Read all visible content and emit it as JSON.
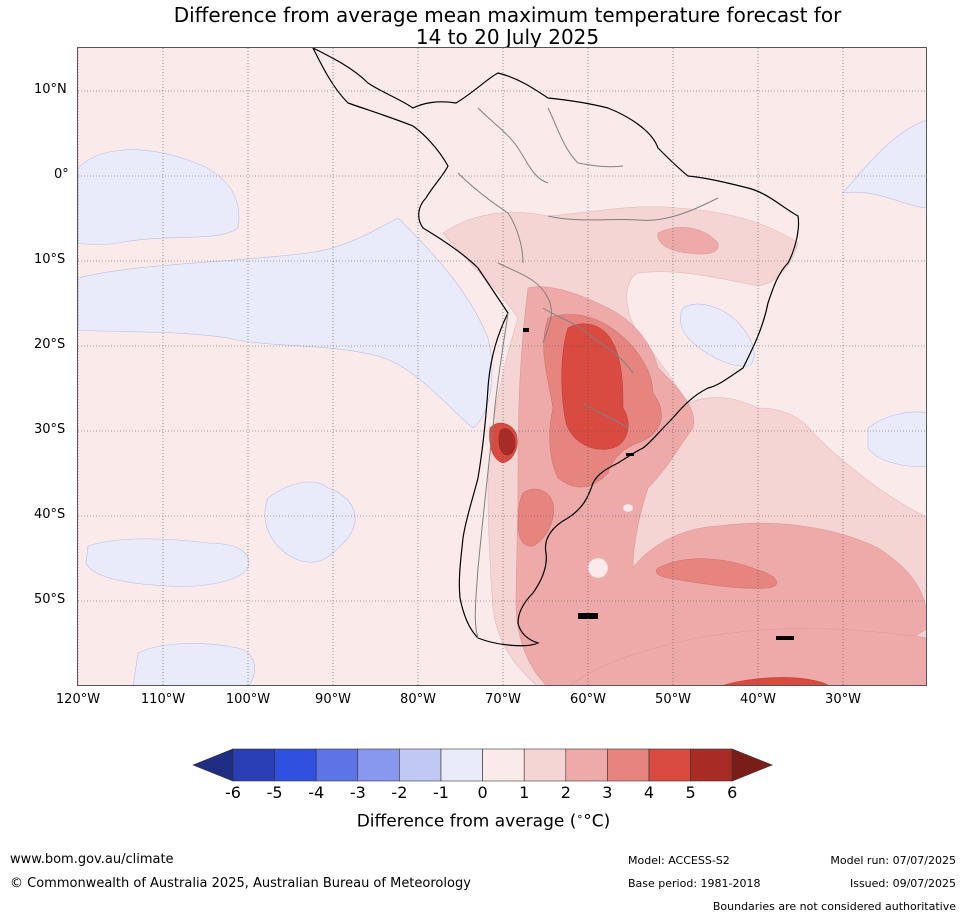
{
  "title_line1": "Difference from average mean maximum temperature forecast for",
  "title_line2": "14 to 20 July 2025",
  "lat_labels": [
    "10°N",
    "0°",
    "10°S",
    "20°S",
    "30°S",
    "40°S",
    "50°S"
  ],
  "lon_labels": [
    "120°W",
    "110°W",
    "100°W",
    "90°W",
    "80°W",
    "70°W",
    "60°W",
    "50°W",
    "40°W",
    "30°W"
  ],
  "colorbar": {
    "ticks": [
      "-6",
      "-5",
      "-4",
      "-3",
      "-2",
      "-1",
      "0",
      "1",
      "2",
      "3",
      "4",
      "5",
      "6"
    ],
    "label": "Difference from average (°C)",
    "label_prefix": "Difference from average (",
    "label_unit": "°C",
    "label_suffix": ")",
    "colors": [
      "#1f2e82",
      "#2a3fb5",
      "#3050e0",
      "#5e73e6",
      "#8898ee",
      "#c2c8f4",
      "#e9ebfb",
      "#fbeaea",
      "#f5d4d4",
      "#eeaaa8",
      "#e68580",
      "#d94a40",
      "#a82c25",
      "#7a1d18"
    ]
  },
  "footer": {
    "website": "www.bom.gov.au/climate",
    "copyright": "© Commonwealth of Australia 2025, Australian Bureau of Meteorology",
    "model": "Model: ACCESS-S2",
    "base_period": "Base period: 1981-2018",
    "model_run": "Model run: 07/07/2025",
    "issued": "Issued: 09/07/2025",
    "disclaimer": "Boundaries are not considered authoritative"
  }
}
